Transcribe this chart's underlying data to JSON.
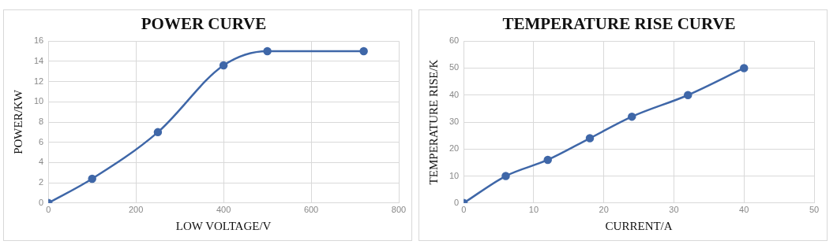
{
  "chart_data": [
    {
      "type": "line",
      "title": "POWER CURVE",
      "xlabel": "LOW VOLTAGE/V",
      "ylabel": "POWER/KW",
      "x": [
        0,
        100,
        250,
        400,
        500,
        720
      ],
      "series": [
        {
          "color": "#3f67a8",
          "values": [
            0,
            2.4,
            7,
            13.6,
            15,
            15
          ]
        }
      ],
      "xlim": [
        0,
        800
      ],
      "xticks": [
        0,
        200,
        400,
        600,
        800
      ],
      "ylim": [
        0,
        16
      ],
      "yticks": [
        0,
        2,
        4,
        6,
        8,
        10,
        12,
        14,
        16
      ],
      "grid": true,
      "legend": false,
      "marker": "circle",
      "line_style": "solid"
    },
    {
      "type": "line",
      "title": "TEMPERATURE RISE CURVE",
      "xlabel": "CURRENT/A",
      "ylabel": "TEMPERATURE RISE/K",
      "x": [
        0,
        6,
        12,
        18,
        24,
        32,
        40
      ],
      "series": [
        {
          "color": "#3f67a8",
          "values": [
            0,
            10,
            16,
            24,
            32,
            40,
            50
          ]
        }
      ],
      "xlim": [
        0,
        50
      ],
      "xticks": [
        0,
        10,
        20,
        30,
        40,
        50
      ],
      "ylim": [
        0,
        60
      ],
      "yticks": [
        0,
        10,
        20,
        30,
        40,
        50,
        60
      ],
      "grid": true,
      "legend": false,
      "marker": "circle",
      "line_style": "solid"
    }
  ]
}
